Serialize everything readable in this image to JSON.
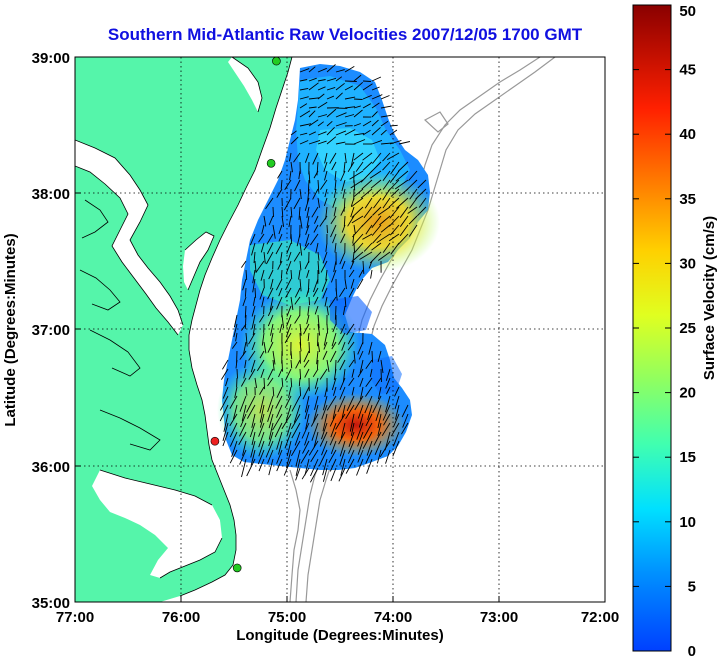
{
  "title": "Southern Mid-Atlantic Raw Velocities 2007/12/05 1700 GMT",
  "map": {
    "xlabel": "Longitude (Degrees:Minutes)",
    "ylabel": "Latitude (Degrees:Minutes)",
    "lon_ticks": [
      "77:00",
      "76:00",
      "75:00",
      "74:00",
      "73:00",
      "72:00"
    ],
    "lat_ticks": [
      "39:00",
      "38:00",
      "37:00",
      "36:00",
      "35:00"
    ],
    "lon_range": [
      -77,
      -72
    ],
    "lat_range": [
      35,
      39
    ],
    "grid": true
  },
  "colorbar": {
    "label": "Surface Velocity (cm/s)",
    "range": [
      0,
      50
    ],
    "ticks": [
      "0",
      "5",
      "10",
      "15",
      "20",
      "25",
      "30",
      "35",
      "40",
      "45",
      "50"
    ]
  },
  "colors": {
    "land": "#55f5aa",
    "title": "#1010e0",
    "vector": "#000000",
    "bathymetry": "#999999"
  },
  "stations": [
    {
      "lon": -75.1,
      "lat": 38.97,
      "color": "#22cc22"
    },
    {
      "lon": -75.15,
      "lat": 38.22,
      "color": "#22cc22"
    },
    {
      "lon": -75.68,
      "lat": 36.18,
      "color": "#ee2222"
    },
    {
      "lon": -75.47,
      "lat": 35.25,
      "color": "#22cc22"
    }
  ]
}
